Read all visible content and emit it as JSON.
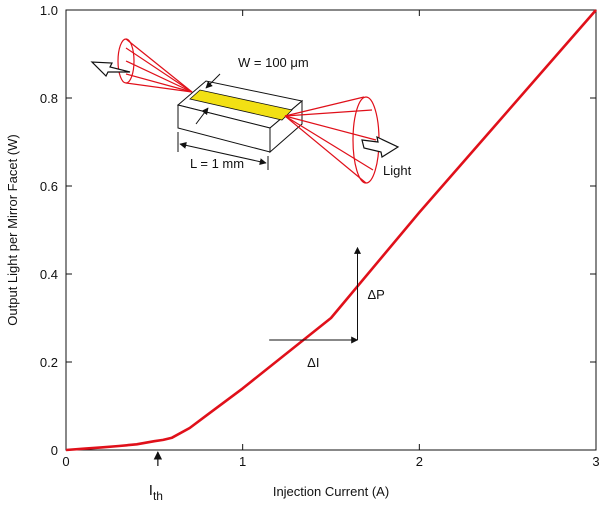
{
  "chart_data": {
    "type": "line",
    "title": "",
    "xlabel": "Injection Current (A)",
    "ylabel": "Output Light per Mirror Facet (W)",
    "xlim": [
      0,
      3
    ],
    "ylim": [
      0,
      1.0
    ],
    "x_ticks": [
      0,
      1,
      2,
      3
    ],
    "x_tick_labels": [
      "0",
      "1",
      "2",
      "3"
    ],
    "y_ticks": [
      0,
      0.2,
      0.4,
      0.6,
      0.8,
      1.0
    ],
    "y_tick_labels": [
      "0",
      "0.2",
      "0.4",
      "0.6",
      "0.8",
      "1.0"
    ],
    "grid": false,
    "line_color": "#e0101a",
    "series": [
      {
        "x": [
          0,
          0.1,
          0.2,
          0.3,
          0.4,
          0.5,
          0.55,
          0.6,
          0.7,
          0.8,
          1.0,
          1.5,
          2.0,
          2.5,
          3.0
        ],
        "y": [
          0.0,
          0.003,
          0.006,
          0.009,
          0.013,
          0.02,
          0.023,
          0.028,
          0.05,
          0.08,
          0.14,
          0.3,
          0.54,
          0.77,
          1.0
        ]
      }
    ],
    "annotations": {
      "threshold_label": "I",
      "threshold_subscript": "th",
      "threshold_x": 0.52,
      "delta_i_label": "ΔI",
      "delta_p_label": "ΔP",
      "delta_i_from": 1.15,
      "delta_i_to": 1.65,
      "delta_p_from": 0.25,
      "delta_p_to": 0.46
    }
  },
  "inset": {
    "width_label": "W = 100 μm",
    "length_label": "L = 1 mm",
    "light_label": "Light",
    "stripe_color": "#f2e014",
    "beam_color": "#e0101a"
  }
}
